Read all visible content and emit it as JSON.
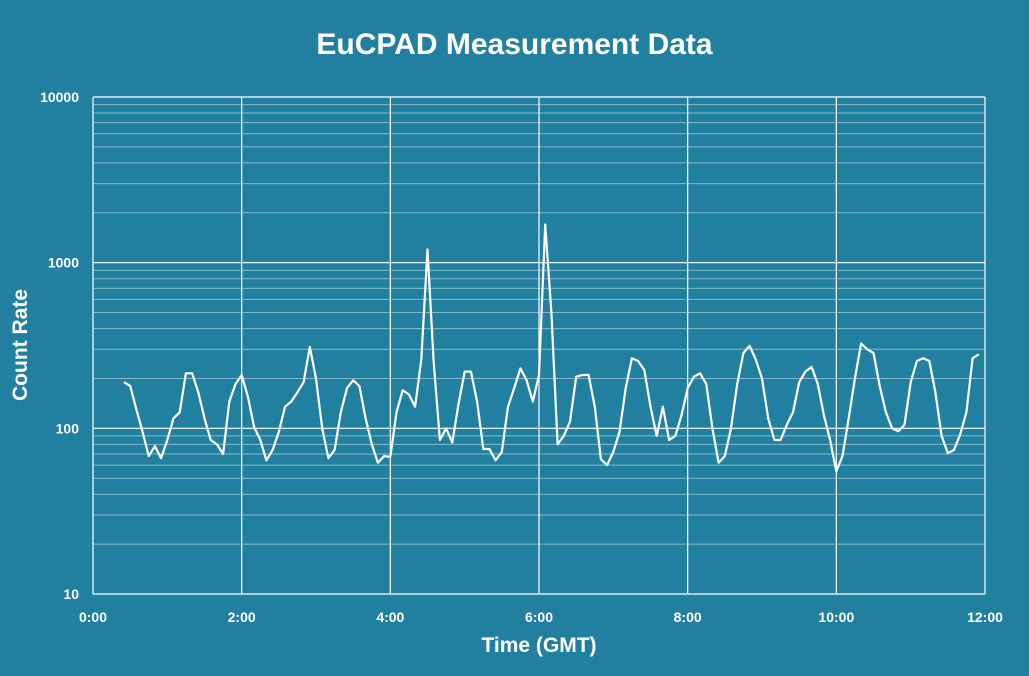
{
  "chart_data": {
    "type": "line",
    "title": "EuCPAD Measurement Data",
    "xlabel": "Time (GMT)",
    "ylabel": "Count Rate",
    "y_scale": "log",
    "ylim": [
      10,
      10000
    ],
    "xlim": [
      "0:00",
      "12:00"
    ],
    "x_tick_labels": [
      "0:00",
      "2:00",
      "4:00",
      "6:00",
      "8:00",
      "10:00",
      "12:00"
    ],
    "y_tick_labels": [
      "10",
      "100",
      "1000",
      "10000"
    ],
    "grid": true,
    "colors": {
      "background": "#21809f",
      "line": "#ffffff",
      "grid": "#ffffff"
    },
    "series": [
      {
        "x": [
          "0:25",
          "0:30",
          "0:35",
          "0:40",
          "0:45",
          "0:50",
          "0:55",
          "1:00",
          "1:05",
          "1:10",
          "1:15",
          "1:20",
          "1:25",
          "1:30",
          "1:35",
          "1:40",
          "1:45",
          "1:50",
          "1:55",
          "2:00",
          "2:05",
          "2:10",
          "2:15",
          "2:20",
          "2:25",
          "2:30",
          "2:35",
          "2:40",
          "2:45",
          "2:50",
          "2:55",
          "3:00",
          "3:05",
          "3:10",
          "3:15",
          "3:20",
          "3:25",
          "3:30",
          "3:35",
          "3:40",
          "3:45",
          "3:50",
          "3:55",
          "4:00",
          "4:05",
          "4:10",
          "4:15",
          "4:20",
          "4:25",
          "4:30",
          "4:35",
          "4:40",
          "4:45",
          "4:50",
          "4:55",
          "5:00",
          "5:05",
          "5:10",
          "5:15",
          "5:20",
          "5:25",
          "5:30",
          "5:35",
          "5:40",
          "5:45",
          "5:50",
          "5:55",
          "6:00",
          "6:05",
          "6:10",
          "6:15",
          "6:20",
          "6:25",
          "6:30",
          "6:35",
          "6:40",
          "6:45",
          "6:50",
          "6:55",
          "7:00",
          "7:05",
          "7:10",
          "7:15",
          "7:20",
          "7:25",
          "7:30",
          "7:35",
          "7:40",
          "7:45",
          "7:50",
          "7:55",
          "8:00",
          "8:05",
          "8:10",
          "8:15",
          "8:20",
          "8:25",
          "8:30",
          "8:35",
          "8:40",
          "8:45",
          "8:50",
          "8:55",
          "9:00",
          "9:05",
          "9:10",
          "9:15",
          "9:20",
          "9:25",
          "9:30",
          "9:35",
          "9:40",
          "9:45",
          "9:50",
          "9:55",
          "10:00",
          "10:05",
          "10:10",
          "10:15",
          "10:20",
          "10:25",
          "10:30",
          "10:35",
          "10:40",
          "10:45",
          "10:50",
          "10:55",
          "11:00",
          "11:05",
          "11:10",
          "11:15",
          "11:20",
          "11:25",
          "11:30",
          "11:35",
          "11:40",
          "11:45",
          "11:50",
          "11:55"
        ],
        "values": [
          190,
          180,
          130,
          95,
          68,
          78,
          66,
          85,
          115,
          125,
          215,
          215,
          165,
          115,
          85,
          80,
          70,
          145,
          185,
          210,
          155,
          102,
          85,
          64,
          74,
          95,
          135,
          145,
          165,
          190,
          310,
          200,
          100,
          66,
          74,
          125,
          175,
          195,
          180,
          115,
          80,
          62,
          68,
          67,
          125,
          170,
          160,
          135,
          260,
          1200,
          250,
          85,
          100,
          82,
          140,
          220,
          220,
          145,
          75,
          75,
          64,
          72,
          135,
          175,
          230,
          195,
          145,
          210,
          1700,
          500,
          80,
          90,
          110,
          205,
          210,
          210,
          135,
          65,
          60,
          72,
          95,
          175,
          265,
          255,
          225,
          135,
          90,
          135,
          85,
          90,
          120,
          175,
          205,
          215,
          185,
          100,
          62,
          68,
          100,
          185,
          285,
          315,
          260,
          200,
          115,
          85,
          85,
          105,
          125,
          190,
          220,
          235,
          185,
          120,
          85,
          55,
          68,
          115,
          200,
          325,
          300,
          285,
          180,
          125,
          100,
          96,
          105,
          190,
          255,
          265,
          255,
          165,
          90,
          71,
          74,
          92,
          125,
          265,
          280
        ]
      }
    ]
  }
}
